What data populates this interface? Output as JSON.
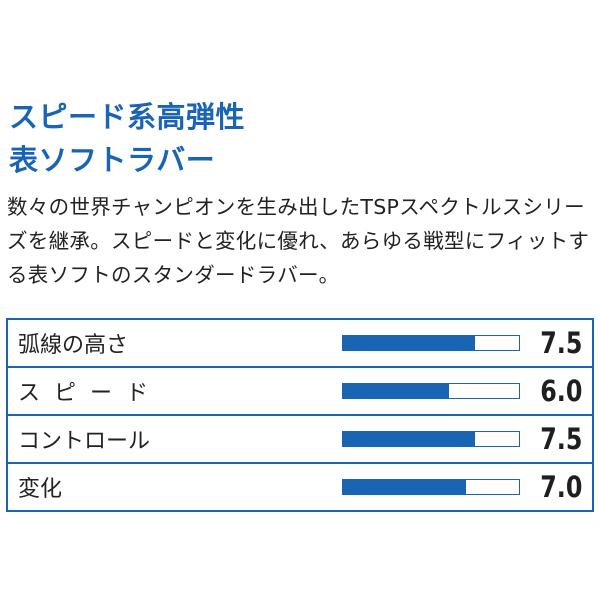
{
  "title": {
    "line1": "スピード系高弾性",
    "line2": "表ソフトラバー"
  },
  "description": "数々の世界チャンピオンを生み出したTSPスペクトルスシリーズを継承。スピードと変化に優れ、あらゆる戦型にフィットする表ソフトのスタンダードラバー。",
  "colors": {
    "accent": "#1a64b4",
    "text": "#222222"
  },
  "ratings": [
    {
      "label": "弧線の高さ",
      "value": "7.5",
      "level": 0.75
    },
    {
      "label": "スピード",
      "value": "6.0",
      "level": 0.6
    },
    {
      "label": "コントロール",
      "value": "7.5",
      "level": 0.75
    },
    {
      "label": "変化",
      "value": "7.0",
      "level": 0.7
    }
  ]
}
